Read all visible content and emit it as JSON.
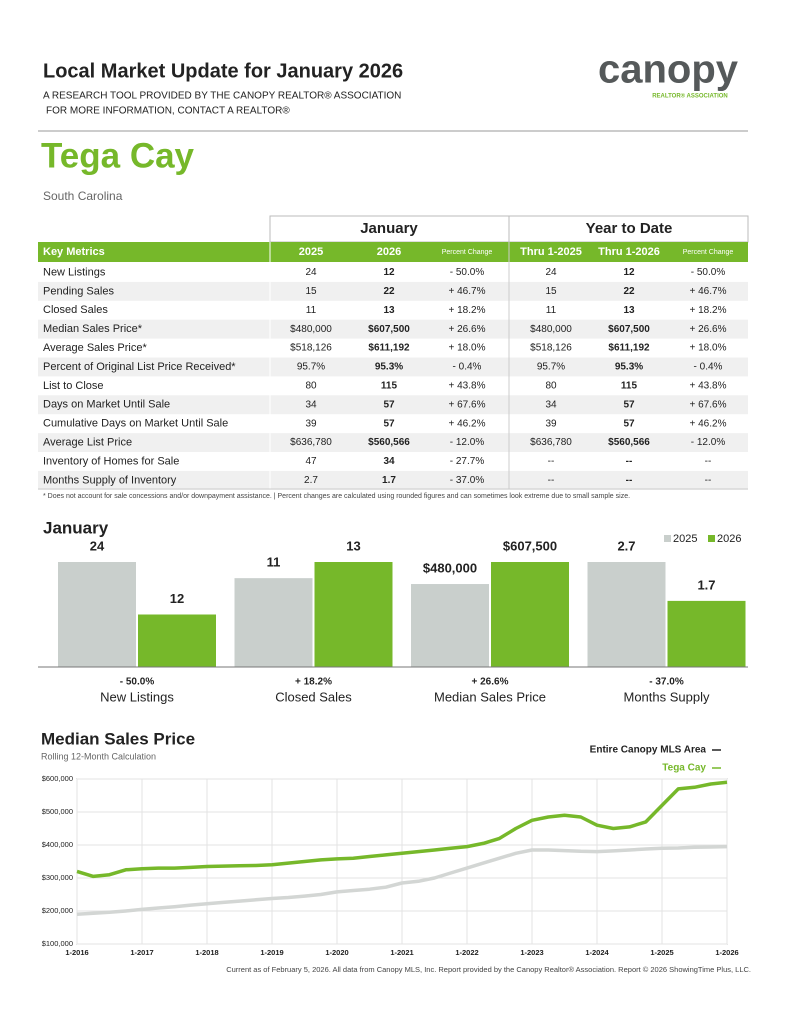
{
  "header": {
    "title": "Local Market Update for January 2026",
    "subtitle_lines": [
      "A RESEARCH TOOL PROVIDED BY THE CANOPY REALTOR® ASSOCIATION",
      "FOR MORE INFORMATION, CONTACT A REALTOR®"
    ],
    "logo": "canopy",
    "logo_tagline": "REALTOR® ASSOCIATION"
  },
  "location": {
    "name": "Tega Cay",
    "state": "South Carolina"
  },
  "table": {
    "groups": [
      "January",
      "Year to Date"
    ],
    "columns": [
      "Key Metrics",
      "2025",
      "2026",
      "Percent Change",
      "Thru 1-2025",
      "Thru 1-2026",
      "Percent Change"
    ],
    "rows": [
      [
        "New Listings",
        "24",
        "12",
        "- 50.0%",
        "24",
        "12",
        "- 50.0%"
      ],
      [
        "Pending Sales",
        "15",
        "22",
        "+ 46.7%",
        "15",
        "22",
        "+ 46.7%"
      ],
      [
        "Closed Sales",
        "11",
        "13",
        "+ 18.2%",
        "11",
        "13",
        "+ 18.2%"
      ],
      [
        "Median Sales Price*",
        "$480,000",
        "$607,500",
        "+ 26.6%",
        "$480,000",
        "$607,500",
        "+ 26.6%"
      ],
      [
        "Average Sales Price*",
        "$518,126",
        "$611,192",
        "+ 18.0%",
        "$518,126",
        "$611,192",
        "+ 18.0%"
      ],
      [
        "Percent of Original List Price Received*",
        "95.7%",
        "95.3%",
        "- 0.4%",
        "95.7%",
        "95.3%",
        "- 0.4%"
      ],
      [
        "List to Close",
        "80",
        "115",
        "+ 43.8%",
        "80",
        "115",
        "+ 43.8%"
      ],
      [
        "Days on Market Until Sale",
        "34",
        "57",
        "+ 67.6%",
        "34",
        "57",
        "+ 67.6%"
      ],
      [
        "Cumulative Days on Market Until Sale",
        "39",
        "57",
        "+ 46.2%",
        "39",
        "57",
        "+ 46.2%"
      ],
      [
        "Average List Price",
        "$636,780",
        "$560,566",
        "- 12.0%",
        "$636,780",
        "$560,566",
        "- 12.0%"
      ],
      [
        "Inventory of Homes for Sale",
        "47",
        "34",
        "- 27.7%",
        "--",
        "--",
        "--"
      ],
      [
        "Months Supply of Inventory",
        "2.7",
        "1.7",
        "- 37.0%",
        "--",
        "--",
        "--"
      ]
    ]
  },
  "footnote": "* Does not account for sale concessions and/or downpayment assistance.  |  Percent changes are calculated using rounded figures and can sometimes look extreme due to small sample size.",
  "chart_data": [
    {
      "type": "bar",
      "title": "January",
      "categories": [
        "New Listings",
        "Closed Sales",
        "Median Sales Price",
        "Months Supply"
      ],
      "changes": [
        "- 50.0%",
        "+ 18.2%",
        "+ 26.6%",
        "- 37.0%"
      ],
      "series": [
        {
          "name": "2025",
          "color": "#c9cfcc",
          "values": [
            24,
            11,
            480000,
            2.7
          ],
          "value_labels": [
            "24",
            "11",
            "$480,000",
            "2.7"
          ]
        },
        {
          "name": "2026",
          "color": "#76b82a",
          "values": [
            12,
            13,
            607500,
            1.7
          ],
          "value_labels": [
            "12",
            "13",
            "$607,500",
            "1.7"
          ]
        }
      ]
    },
    {
      "type": "line",
      "title": "Median Sales Price",
      "subtitle": "Rolling 12-Month Calculation",
      "x": [
        2016,
        2016.25,
        2016.5,
        2016.75,
        2017,
        2017.25,
        2017.5,
        2017.75,
        2018,
        2018.25,
        2018.5,
        2018.75,
        2019,
        2019.25,
        2019.5,
        2019.75,
        2020,
        2020.25,
        2020.5,
        2020.75,
        2021,
        2021.25,
        2021.5,
        2021.75,
        2022,
        2022.25,
        2022.5,
        2022.75,
        2023,
        2023.25,
        2023.5,
        2023.75,
        2024,
        2024.25,
        2024.5,
        2024.75,
        2025,
        2025.25,
        2025.5,
        2025.75,
        2026
      ],
      "series": [
        {
          "name": "Entire Canopy MLS Area",
          "color": "#d3d6d4",
          "values": [
            190000,
            193000,
            196000,
            200000,
            205000,
            209000,
            213000,
            218000,
            222000,
            226000,
            230000,
            234000,
            238000,
            241000,
            245000,
            250000,
            258000,
            262000,
            266000,
            272000,
            285000,
            290000,
            300000,
            315000,
            330000,
            345000,
            360000,
            375000,
            385000,
            385000,
            383000,
            381000,
            380000,
            382000,
            385000,
            388000,
            390000,
            391000,
            393000,
            394000,
            395000
          ]
        },
        {
          "name": "Tega Cay",
          "color": "#76b82a",
          "values": [
            320000,
            305000,
            310000,
            325000,
            328000,
            330000,
            330000,
            332000,
            335000,
            336000,
            337000,
            338000,
            340000,
            345000,
            350000,
            355000,
            358000,
            360000,
            365000,
            370000,
            375000,
            380000,
            385000,
            390000,
            395000,
            405000,
            420000,
            450000,
            475000,
            485000,
            490000,
            485000,
            460000,
            450000,
            455000,
            470000,
            520000,
            570000,
            575000,
            585000,
            590000
          ]
        }
      ],
      "xlim": [
        2016,
        2026
      ],
      "xticks": [
        {
          "value": 2016,
          "label": "1-2016"
        },
        {
          "value": 2017,
          "label": "1-2017"
        },
        {
          "value": 2018,
          "label": "1-2018"
        },
        {
          "value": 2019,
          "label": "1-2019"
        },
        {
          "value": 2020,
          "label": "1-2020"
        },
        {
          "value": 2021,
          "label": "1-2021"
        },
        {
          "value": 2022,
          "label": "1-2022"
        },
        {
          "value": 2023,
          "label": "1-2023"
        },
        {
          "value": 2024,
          "label": "1-2024"
        },
        {
          "value": 2025,
          "label": "1-2025"
        },
        {
          "value": 2026,
          "label": "1-2026"
        }
      ],
      "ylim": [
        100000,
        600000
      ],
      "yticks": [
        {
          "value": 100000,
          "label": "$100,000"
        },
        {
          "value": 200000,
          "label": "$200,000"
        },
        {
          "value": 300000,
          "label": "$300,000"
        },
        {
          "value": 400000,
          "label": "$400,000"
        },
        {
          "value": 500000,
          "label": "$500,000"
        },
        {
          "value": 600000,
          "label": "$600,000"
        }
      ],
      "grid": true
    }
  ],
  "footer": "Current as of February 5, 2026. All data from Canopy MLS, Inc. Report provided by the Canopy Realtor® Association. Report © 2026 ShowingTime Plus, LLC."
}
